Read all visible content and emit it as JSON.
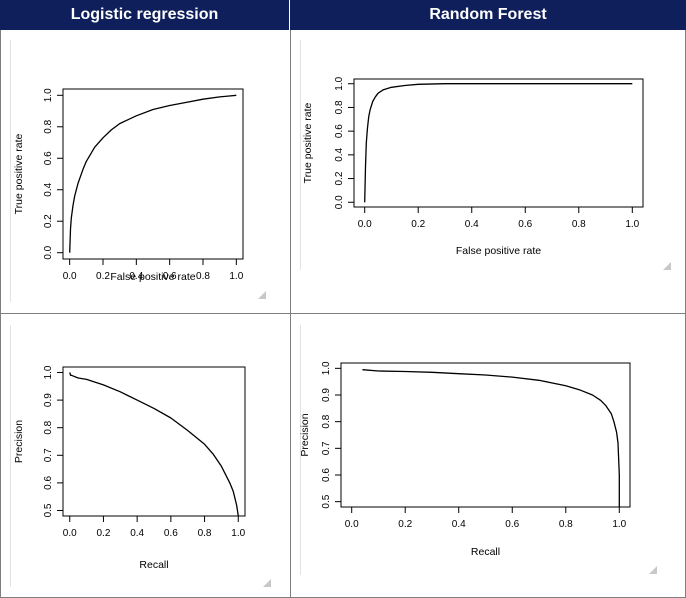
{
  "headers": {
    "left": "Logistic regression",
    "right": "Random Forest"
  },
  "chart_data": [
    {
      "id": "lr-roc",
      "type": "line",
      "title": "",
      "xlabel": "False positive rate",
      "ylabel": "True positive rate",
      "xlim": [
        0,
        1
      ],
      "ylim": [
        0,
        1
      ],
      "xticks": [
        "0.0",
        "0.2",
        "0.4",
        "0.6",
        "0.8",
        "1.0"
      ],
      "yticks": [
        "0.0",
        "0.2",
        "0.4",
        "0.6",
        "0.8",
        "1.0"
      ],
      "grid": false,
      "series": [
        {
          "x": [
            0,
            0.005,
            0.01,
            0.02,
            0.03,
            0.05,
            0.08,
            0.1,
            0.15,
            0.2,
            0.25,
            0.3,
            0.4,
            0.5,
            0.6,
            0.7,
            0.8,
            0.9,
            0.95,
            1.0
          ],
          "values": [
            0,
            0.15,
            0.22,
            0.3,
            0.36,
            0.44,
            0.53,
            0.58,
            0.67,
            0.73,
            0.78,
            0.82,
            0.87,
            0.91,
            0.935,
            0.955,
            0.975,
            0.99,
            0.995,
            1.0
          ]
        }
      ]
    },
    {
      "id": "rf-roc",
      "type": "line",
      "title": "",
      "xlabel": "False positive rate",
      "ylabel": "True positive rate",
      "xlim": [
        0,
        1
      ],
      "ylim": [
        0,
        1
      ],
      "xticks": [
        "0.0",
        "0.2",
        "0.4",
        "0.6",
        "0.8",
        "1.0"
      ],
      "yticks": [
        "0.0",
        "0.2",
        "0.4",
        "0.6",
        "0.8",
        "1.0"
      ],
      "grid": false,
      "series": [
        {
          "x": [
            0,
            0.003,
            0.006,
            0.01,
            0.015,
            0.02,
            0.03,
            0.04,
            0.05,
            0.07,
            0.1,
            0.15,
            0.2,
            0.3,
            0.5,
            1.0
          ],
          "values": [
            0,
            0.3,
            0.5,
            0.62,
            0.72,
            0.78,
            0.85,
            0.89,
            0.92,
            0.95,
            0.97,
            0.985,
            0.995,
            1.0,
            1.0,
            1.0
          ]
        }
      ]
    },
    {
      "id": "lr-pr",
      "type": "line",
      "title": "",
      "xlabel": "Recall",
      "ylabel": "Precision",
      "xlim": [
        0,
        1
      ],
      "ylim": [
        0.5,
        1
      ],
      "xticks": [
        "0.0",
        "0.2",
        "0.4",
        "0.6",
        "0.8",
        "1.0"
      ],
      "yticks": [
        "0.5",
        "0.6",
        "0.7",
        "0.8",
        "0.9",
        "1.0"
      ],
      "grid": false,
      "series": [
        {
          "x": [
            0.0,
            0.005,
            0.01,
            0.05,
            0.1,
            0.2,
            0.3,
            0.4,
            0.5,
            0.6,
            0.7,
            0.8,
            0.85,
            0.9,
            0.95,
            0.97,
            0.99,
            1.0
          ],
          "values": [
            1.0,
            0.99,
            0.99,
            0.98,
            0.975,
            0.955,
            0.93,
            0.9,
            0.87,
            0.835,
            0.79,
            0.74,
            0.705,
            0.66,
            0.6,
            0.57,
            0.52,
            0.48
          ]
        }
      ]
    },
    {
      "id": "rf-pr",
      "type": "line",
      "title": "",
      "xlabel": "Recall",
      "ylabel": "Precision",
      "xlim": [
        0,
        1
      ],
      "ylim": [
        0.5,
        1
      ],
      "xticks": [
        "0.0",
        "0.2",
        "0.4",
        "0.6",
        "0.8",
        "1.0"
      ],
      "yticks": [
        "0.5",
        "0.6",
        "0.7",
        "0.8",
        "0.9",
        "1.0"
      ],
      "grid": false,
      "series": [
        {
          "x": [
            0.04,
            0.1,
            0.2,
            0.3,
            0.4,
            0.5,
            0.6,
            0.7,
            0.8,
            0.85,
            0.9,
            0.93,
            0.95,
            0.97,
            0.98,
            0.99,
            0.995,
            1.0,
            1.0
          ],
          "values": [
            0.995,
            0.99,
            0.988,
            0.985,
            0.98,
            0.975,
            0.967,
            0.955,
            0.935,
            0.92,
            0.9,
            0.88,
            0.86,
            0.83,
            0.8,
            0.76,
            0.72,
            0.6,
            0.48
          ]
        }
      ]
    }
  ]
}
